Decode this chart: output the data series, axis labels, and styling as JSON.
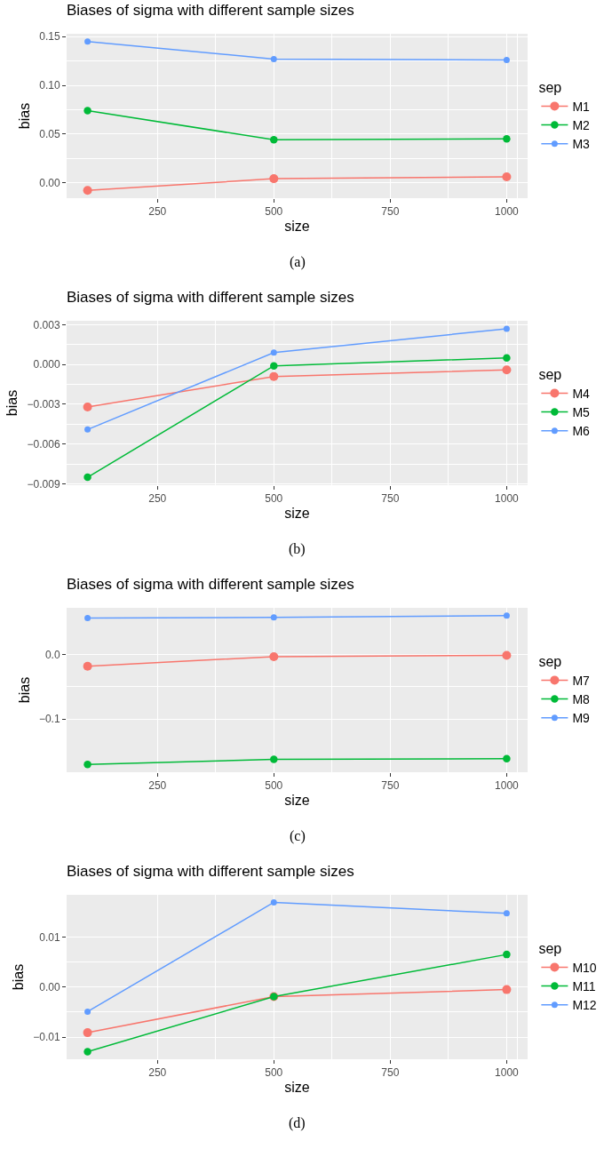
{
  "chart_data": [
    {
      "type": "line",
      "title": "Biases of sigma with different sample sizes",
      "xlabel": "size",
      "ylabel": "bias",
      "legend_title": "sep",
      "annotations": [
        "(a)"
      ],
      "x": [
        100,
        500,
        1000
      ],
      "series": [
        {
          "name": "M1",
          "color": "#f8766d",
          "values": [
            -0.008,
            0.004,
            0.006
          ]
        },
        {
          "name": "M2",
          "color": "#00ba38",
          "values": [
            0.074,
            0.044,
            0.045
          ]
        },
        {
          "name": "M3",
          "color": "#619cff",
          "values": [
            0.145,
            0.127,
            0.126
          ]
        }
      ],
      "xlim": [
        55,
        1045
      ],
      "xticks": [
        250,
        500,
        750,
        1000
      ],
      "ylim": [
        -0.016,
        0.153
      ],
      "yticks": [
        {
          "value": 0,
          "label": "0.00"
        },
        {
          "value": 0.05,
          "label": "0.05"
        },
        {
          "value": 0.1,
          "label": "0.10"
        },
        {
          "value": 0.15,
          "label": "0.15"
        }
      ],
      "grid": true,
      "legend": "right",
      "marker": "circle",
      "line_style": "solid"
    },
    {
      "type": "line",
      "title": "Biases of sigma with different sample sizes",
      "xlabel": "size",
      "ylabel": "bias",
      "legend_title": "sep",
      "annotations": [
        "(b)"
      ],
      "x": [
        100,
        500,
        1000
      ],
      "series": [
        {
          "name": "M4",
          "color": "#f8766d",
          "values": [
            -0.0032,
            -0.0009,
            -0.0004
          ]
        },
        {
          "name": "M5",
          "color": "#00ba38",
          "values": [
            -0.0085,
            -0.0001,
            0.0005
          ]
        },
        {
          "name": "M6",
          "color": "#619cff",
          "values": [
            -0.0049,
            0.0009,
            0.0027
          ]
        }
      ],
      "xlim": [
        55,
        1045
      ],
      "xticks": [
        250,
        500,
        750,
        1000
      ],
      "ylim": [
        -0.0091,
        0.0033
      ],
      "yticks": [
        {
          "value": -0.009,
          "label": "−0.009"
        },
        {
          "value": -0.006,
          "label": "−0.006"
        },
        {
          "value": -0.003,
          "label": "−0.003"
        },
        {
          "value": 0,
          "label": "0.000"
        },
        {
          "value": 0.003,
          "label": "0.003"
        }
      ],
      "grid": true,
      "legend": "right",
      "marker": "circle",
      "line_style": "solid"
    },
    {
      "type": "line",
      "title": "Biases of sigma with different sample sizes",
      "xlabel": "size",
      "ylabel": "bias",
      "legend_title": "sep",
      "annotations": [
        "(c)"
      ],
      "x": [
        100,
        500,
        1000
      ],
      "series": [
        {
          "name": "M7",
          "color": "#f8766d",
          "values": [
            -0.018,
            -0.003,
            -0.001
          ]
        },
        {
          "name": "M8",
          "color": "#00ba38",
          "values": [
            -0.171,
            -0.163,
            -0.162
          ]
        },
        {
          "name": "M9",
          "color": "#619cff",
          "values": [
            0.057,
            0.058,
            0.061
          ]
        }
      ],
      "xlim": [
        55,
        1045
      ],
      "xticks": [
        250,
        500,
        750,
        1000
      ],
      "ylim": [
        -0.183,
        0.073
      ],
      "yticks": [
        {
          "value": -0.1,
          "label": "−0.1"
        },
        {
          "value": 0,
          "label": "0.0"
        }
      ],
      "grid": true,
      "legend": "right",
      "marker": "circle",
      "line_style": "solid"
    },
    {
      "type": "line",
      "title": "Biases of sigma with different sample sizes",
      "xlabel": "size",
      "ylabel": "bias",
      "legend_title": "sep",
      "annotations": [
        "(d)"
      ],
      "x": [
        100,
        500,
        1000
      ],
      "series": [
        {
          "name": "M10",
          "color": "#f8766d",
          "values": [
            -0.0091,
            -0.0019,
            -0.0005
          ]
        },
        {
          "name": "M11",
          "color": "#00ba38",
          "values": [
            -0.0129,
            -0.0019,
            0.0065
          ]
        },
        {
          "name": "M12",
          "color": "#619cff",
          "values": [
            -0.0049,
            0.0169,
            0.0147
          ]
        }
      ],
      "xlim": [
        55,
        1045
      ],
      "xticks": [
        250,
        500,
        750,
        1000
      ],
      "ylim": [
        -0.0144,
        0.0184
      ],
      "yticks": [
        {
          "value": -0.01,
          "label": "−0.01"
        },
        {
          "value": 0,
          "label": "0.00"
        },
        {
          "value": 0.01,
          "label": "0.01"
        }
      ],
      "grid": true,
      "legend": "right",
      "marker": "circle",
      "line_style": "solid"
    }
  ]
}
